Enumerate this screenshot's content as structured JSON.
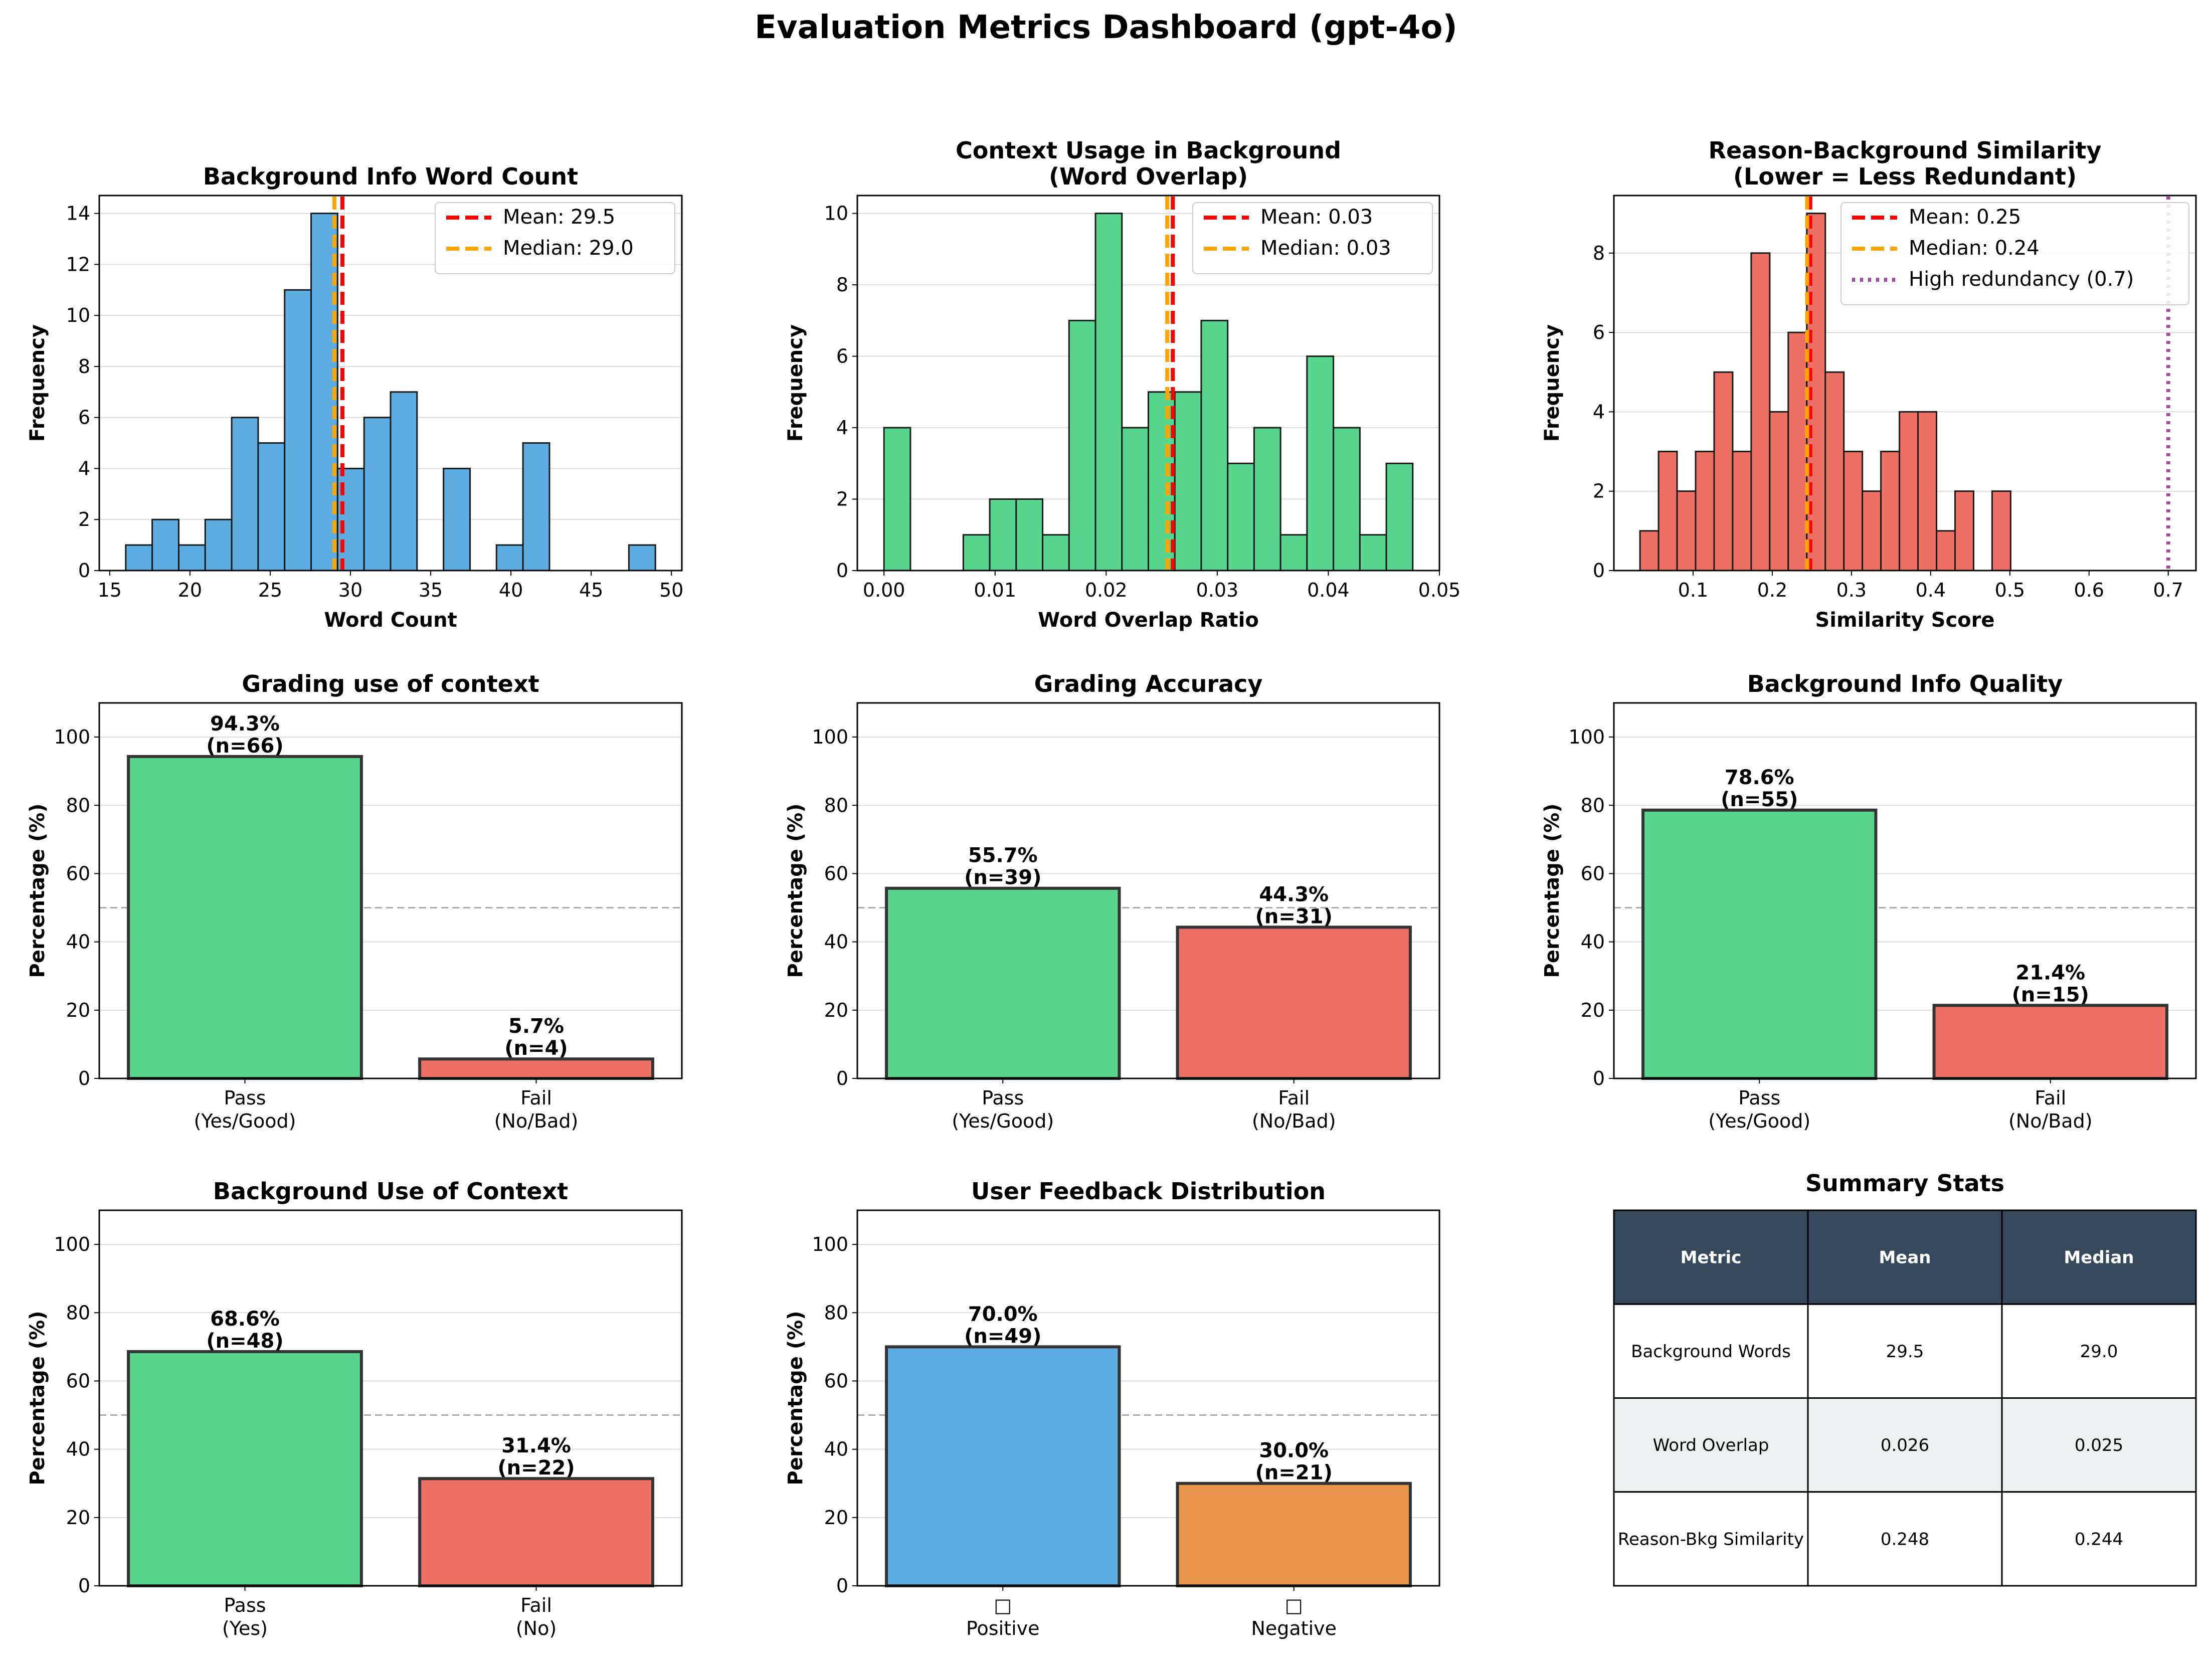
{
  "page_title": "Evaluation Metrics Dashboard (gpt-4o)",
  "colors": {
    "blue": "#5DADE2",
    "green": "#58D68D",
    "red": "#EC7063",
    "orange": "#EB984E",
    "mean_line": "#FF0000",
    "median_line": "#FFA500",
    "redundancy_line": "#A349A4",
    "table_header_bg": "#34495E",
    "table_alt_row": "#ECF0F1"
  },
  "chart_data": [
    {
      "type": "bar",
      "title": "Background Info Word Count",
      "xlabel": "Word Count",
      "ylabel": "Frequency",
      "xlim": [
        14.35,
        50.65
      ],
      "ylim": [
        0,
        14.7
      ],
      "xticks": [
        15,
        20,
        25,
        30,
        35,
        40,
        45,
        50
      ],
      "yticks": [
        0,
        2,
        4,
        6,
        8,
        10,
        12,
        14
      ],
      "bins": [
        16,
        17.65,
        19.3,
        20.95,
        22.6,
        24.25,
        25.9,
        27.55,
        29.2,
        30.85,
        32.5,
        34.15,
        35.8,
        37.45,
        39.1,
        40.75,
        42.4,
        44.05,
        45.7,
        47.35,
        49
      ],
      "counts": [
        1,
        2,
        1,
        2,
        6,
        5,
        11,
        14,
        4,
        6,
        7,
        0,
        4,
        0,
        1,
        5,
        0,
        0,
        0,
        1
      ],
      "lines": [
        {
          "x": 29.5,
          "style": "dashed",
          "color": "#FF0000",
          "label": "Mean: 29.5"
        },
        {
          "x": 29.0,
          "style": "dashed",
          "color": "#FFA500",
          "label": "Median: 29.0"
        }
      ],
      "legend": "top-right",
      "bar_color": "#5DADE2"
    },
    {
      "type": "bar",
      "title": [
        "Context Usage in Background",
        "(Word Overlap)"
      ],
      "xlabel": "Word Overlap Ratio",
      "ylabel": "Frequency",
      "xlim": [
        -0.0024,
        0.05
      ],
      "ylim": [
        0,
        10.5
      ],
      "xticks": [
        0.0,
        0.01,
        0.02,
        0.03,
        0.04,
        0.05
      ],
      "xtick_labels": [
        "0.00",
        "0.01",
        "0.02",
        "0.03",
        "0.04",
        "0.05"
      ],
      "yticks": [
        0,
        2,
        4,
        6,
        8,
        10
      ],
      "bins": [
        0,
        0.00238,
        0.00476,
        0.00714,
        0.00952,
        0.0119,
        0.01428,
        0.01666,
        0.01904,
        0.02142,
        0.0238,
        0.02618,
        0.02856,
        0.03094,
        0.03332,
        0.0357,
        0.03808,
        0.04046,
        0.04284,
        0.04522,
        0.0476
      ],
      "counts": [
        4,
        0,
        0,
        1,
        2,
        2,
        1,
        7,
        10,
        4,
        5,
        5,
        7,
        3,
        4,
        1,
        6,
        4,
        1,
        3
      ],
      "lines": [
        {
          "x": 0.026,
          "style": "dashed",
          "color": "#FF0000",
          "label": "Mean: 0.03"
        },
        {
          "x": 0.0255,
          "style": "dashed",
          "color": "#FFA500",
          "label": "Median: 0.03"
        }
      ],
      "legend": "top-right",
      "bar_color": "#58D68D"
    },
    {
      "type": "bar",
      "title": [
        "Reason-Background Similarity",
        "(Lower = Less Redundant)"
      ],
      "xlabel": "Similarity Score",
      "ylabel": "Frequency",
      "xlim": [
        0.0,
        0.735
      ],
      "ylim": [
        0,
        9.45
      ],
      "xticks": [
        0.1,
        0.2,
        0.3,
        0.4,
        0.5,
        0.6,
        0.7
      ],
      "xtick_labels": [
        "0.1",
        "0.2",
        "0.3",
        "0.4",
        "0.5",
        "0.6",
        "0.7"
      ],
      "yticks": [
        0,
        2,
        4,
        6,
        8
      ],
      "bins": [
        0.033,
        0.0564,
        0.0798,
        0.1032,
        0.1266,
        0.15,
        0.1734,
        0.1968,
        0.2202,
        0.2436,
        0.267,
        0.2904,
        0.3138,
        0.3372,
        0.3606,
        0.384,
        0.4074,
        0.4308,
        0.4542,
        0.4776,
        0.501
      ],
      "counts": [
        1,
        3,
        2,
        3,
        5,
        3,
        8,
        4,
        6,
        9,
        5,
        3,
        2,
        3,
        4,
        4,
        1,
        2,
        0,
        2
      ],
      "lines": [
        {
          "x": 0.248,
          "style": "dashed",
          "color": "#FF0000",
          "label": "Mean: 0.25"
        },
        {
          "x": 0.244,
          "style": "dashed",
          "color": "#FFA500",
          "label": "Median: 0.24"
        },
        {
          "x": 0.7,
          "style": "dotted",
          "color": "#A349A4",
          "label": "High redundancy (0.7)"
        }
      ],
      "legend": "top-right",
      "bar_color": "#EC7063"
    },
    {
      "type": "bar",
      "title": "Grading use of context",
      "ylabel": "Percentage (%)",
      "ylim": [
        0,
        110
      ],
      "yticks": [
        0,
        20,
        40,
        60,
        80,
        100
      ],
      "reference_line": 50,
      "categories": [
        [
          "Pass",
          "(Yes/Good)"
        ],
        [
          "Fail",
          "(No/Bad)"
        ]
      ],
      "values": [
        94.3,
        5.7
      ],
      "counts": [
        66,
        4
      ],
      "value_labels": [
        [
          "94.3%",
          "(n=66)"
        ],
        [
          "5.7%",
          "(n=4)"
        ]
      ],
      "bar_colors": [
        "#58D68D",
        "#EC7063"
      ]
    },
    {
      "type": "bar",
      "title": "Grading Accuracy",
      "ylabel": "Percentage (%)",
      "ylim": [
        0,
        110
      ],
      "yticks": [
        0,
        20,
        40,
        60,
        80,
        100
      ],
      "reference_line": 50,
      "categories": [
        [
          "Pass",
          "(Yes/Good)"
        ],
        [
          "Fail",
          "(No/Bad)"
        ]
      ],
      "values": [
        55.7,
        44.3
      ],
      "counts": [
        39,
        31
      ],
      "value_labels": [
        [
          "55.7%",
          "(n=39)"
        ],
        [
          "44.3%",
          "(n=31)"
        ]
      ],
      "bar_colors": [
        "#58D68D",
        "#EC7063"
      ]
    },
    {
      "type": "bar",
      "title": "Background Info Quality",
      "ylabel": "Percentage (%)",
      "ylim": [
        0,
        110
      ],
      "yticks": [
        0,
        20,
        40,
        60,
        80,
        100
      ],
      "reference_line": 50,
      "categories": [
        [
          "Pass",
          "(Yes/Good)"
        ],
        [
          "Fail",
          "(No/Bad)"
        ]
      ],
      "values": [
        78.6,
        21.4
      ],
      "counts": [
        55,
        15
      ],
      "value_labels": [
        [
          "78.6%",
          "(n=55)"
        ],
        [
          "21.4%",
          "(n=15)"
        ]
      ],
      "bar_colors": [
        "#58D68D",
        "#EC7063"
      ]
    },
    {
      "type": "bar",
      "title": "Background Use of Context",
      "ylabel": "Percentage (%)",
      "ylim": [
        0,
        110
      ],
      "yticks": [
        0,
        20,
        40,
        60,
        80,
        100
      ],
      "reference_line": 50,
      "categories": [
        [
          "Pass",
          "(Yes)"
        ],
        [
          "Fail",
          "(No)"
        ]
      ],
      "values": [
        68.6,
        31.4
      ],
      "counts": [
        48,
        22
      ],
      "value_labels": [
        [
          "68.6%",
          "(n=48)"
        ],
        [
          "31.4%",
          "(n=22)"
        ]
      ],
      "bar_colors": [
        "#58D68D",
        "#EC7063"
      ]
    },
    {
      "type": "bar",
      "title": "User Feedback Distribution",
      "ylabel": "Percentage (%)",
      "ylim": [
        0,
        110
      ],
      "yticks": [
        0,
        20,
        40,
        60,
        80,
        100
      ],
      "reference_line": 50,
      "categories": [
        [
          "□",
          "Positive"
        ],
        [
          "□",
          "Negative"
        ]
      ],
      "values": [
        70.0,
        30.0
      ],
      "counts": [
        49,
        21
      ],
      "value_labels": [
        [
          "70.0%",
          "(n=49)"
        ],
        [
          "30.0%",
          "(n=21)"
        ]
      ],
      "bar_colors": [
        "#5DADE2",
        "#EB984E"
      ]
    },
    {
      "type": "table",
      "title": "Summary Stats",
      "columns": [
        "Metric",
        "Mean",
        "Median"
      ],
      "rows": [
        [
          "Background Words",
          "29.5",
          "29.0"
        ],
        [
          "Word Overlap",
          "0.026",
          "0.025"
        ],
        [
          "Reason-Bkg Similarity",
          "0.248",
          "0.244"
        ]
      ]
    }
  ]
}
